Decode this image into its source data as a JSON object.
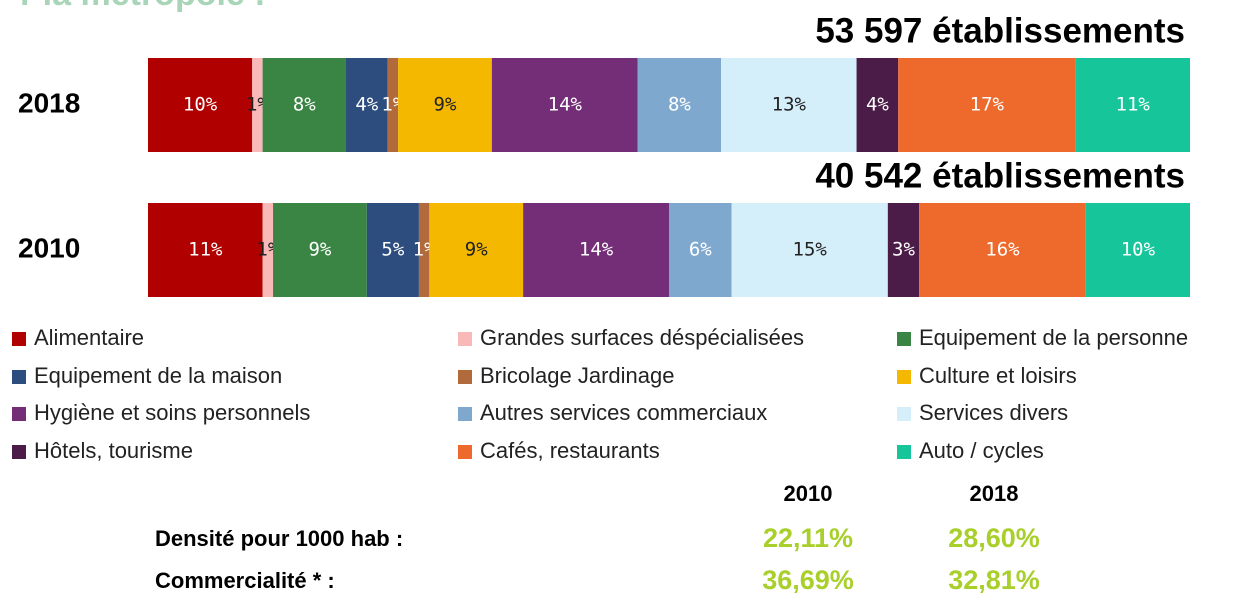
{
  "chart_data": {
    "type": "bar",
    "orientation": "horizontal",
    "stacked": true,
    "title": "r la métropole :",
    "categories": [
      "2018",
      "2010"
    ],
    "annotations": [
      "53 597 établissements",
      "40 542 établissements"
    ],
    "xlim": [
      0,
      100
    ],
    "series": [
      {
        "name": "Alimentaire",
        "color": "#b00000",
        "values": [
          10,
          11
        ],
        "value_labels": [
          "10%",
          "11%"
        ]
      },
      {
        "name": "Grandes surfaces déspécialisées",
        "color": "#f9b9b9",
        "values": [
          1,
          1
        ],
        "value_labels": [
          "1%",
          "1%"
        ]
      },
      {
        "name": "Equipement de la personne",
        "color": "#3a8544",
        "values": [
          8,
          9
        ],
        "value_labels": [
          "8%",
          "9%"
        ]
      },
      {
        "name": "Equipement de la maison",
        "color": "#2e4d7f",
        "values": [
          4,
          5
        ],
        "value_labels": [
          "4%",
          "5%"
        ]
      },
      {
        "name": "Bricolage Jardinage",
        "color": "#b06a3b",
        "values": [
          1,
          1
        ],
        "value_labels": [
          "1%",
          "1%"
        ]
      },
      {
        "name": "Culture et loisirs",
        "color": "#f5b800",
        "values": [
          9,
          9
        ],
        "value_labels": [
          "9%",
          "9%"
        ]
      },
      {
        "name": "Hygiène et soins personnels",
        "color": "#742e78",
        "values": [
          14,
          14
        ],
        "value_labels": [
          "14%",
          "14%"
        ]
      },
      {
        "name": "Autres services commerciaux",
        "color": "#7fa8cf",
        "values": [
          8,
          6
        ],
        "value_labels": [
          "8%",
          "6%"
        ]
      },
      {
        "name": "Services divers",
        "color": "#d4eefa",
        "values": [
          13,
          15
        ],
        "value_labels": [
          "13%",
          "15%"
        ]
      },
      {
        "name": "Hôtels, tourisme",
        "color": "#4b1c47",
        "values": [
          4,
          3
        ],
        "value_labels": [
          "4%",
          "3%"
        ]
      },
      {
        "name": "Cafés, restaurants",
        "color": "#ee6a2c",
        "values": [
          17,
          16
        ],
        "value_labels": [
          "17%",
          "16%"
        ]
      },
      {
        "name": "Auto / cycles",
        "color": "#17c59a",
        "values": [
          11,
          10
        ],
        "value_labels": [
          "11%",
          "10%"
        ]
      }
    ]
  },
  "table": {
    "header": [
      "2010",
      "2018"
    ],
    "rows": [
      [
        "Densité pour 1000 hab :",
        "22,11%",
        "28,60%"
      ],
      [
        "Commercialité * :",
        "36,69%",
        "32,81%"
      ]
    ]
  }
}
